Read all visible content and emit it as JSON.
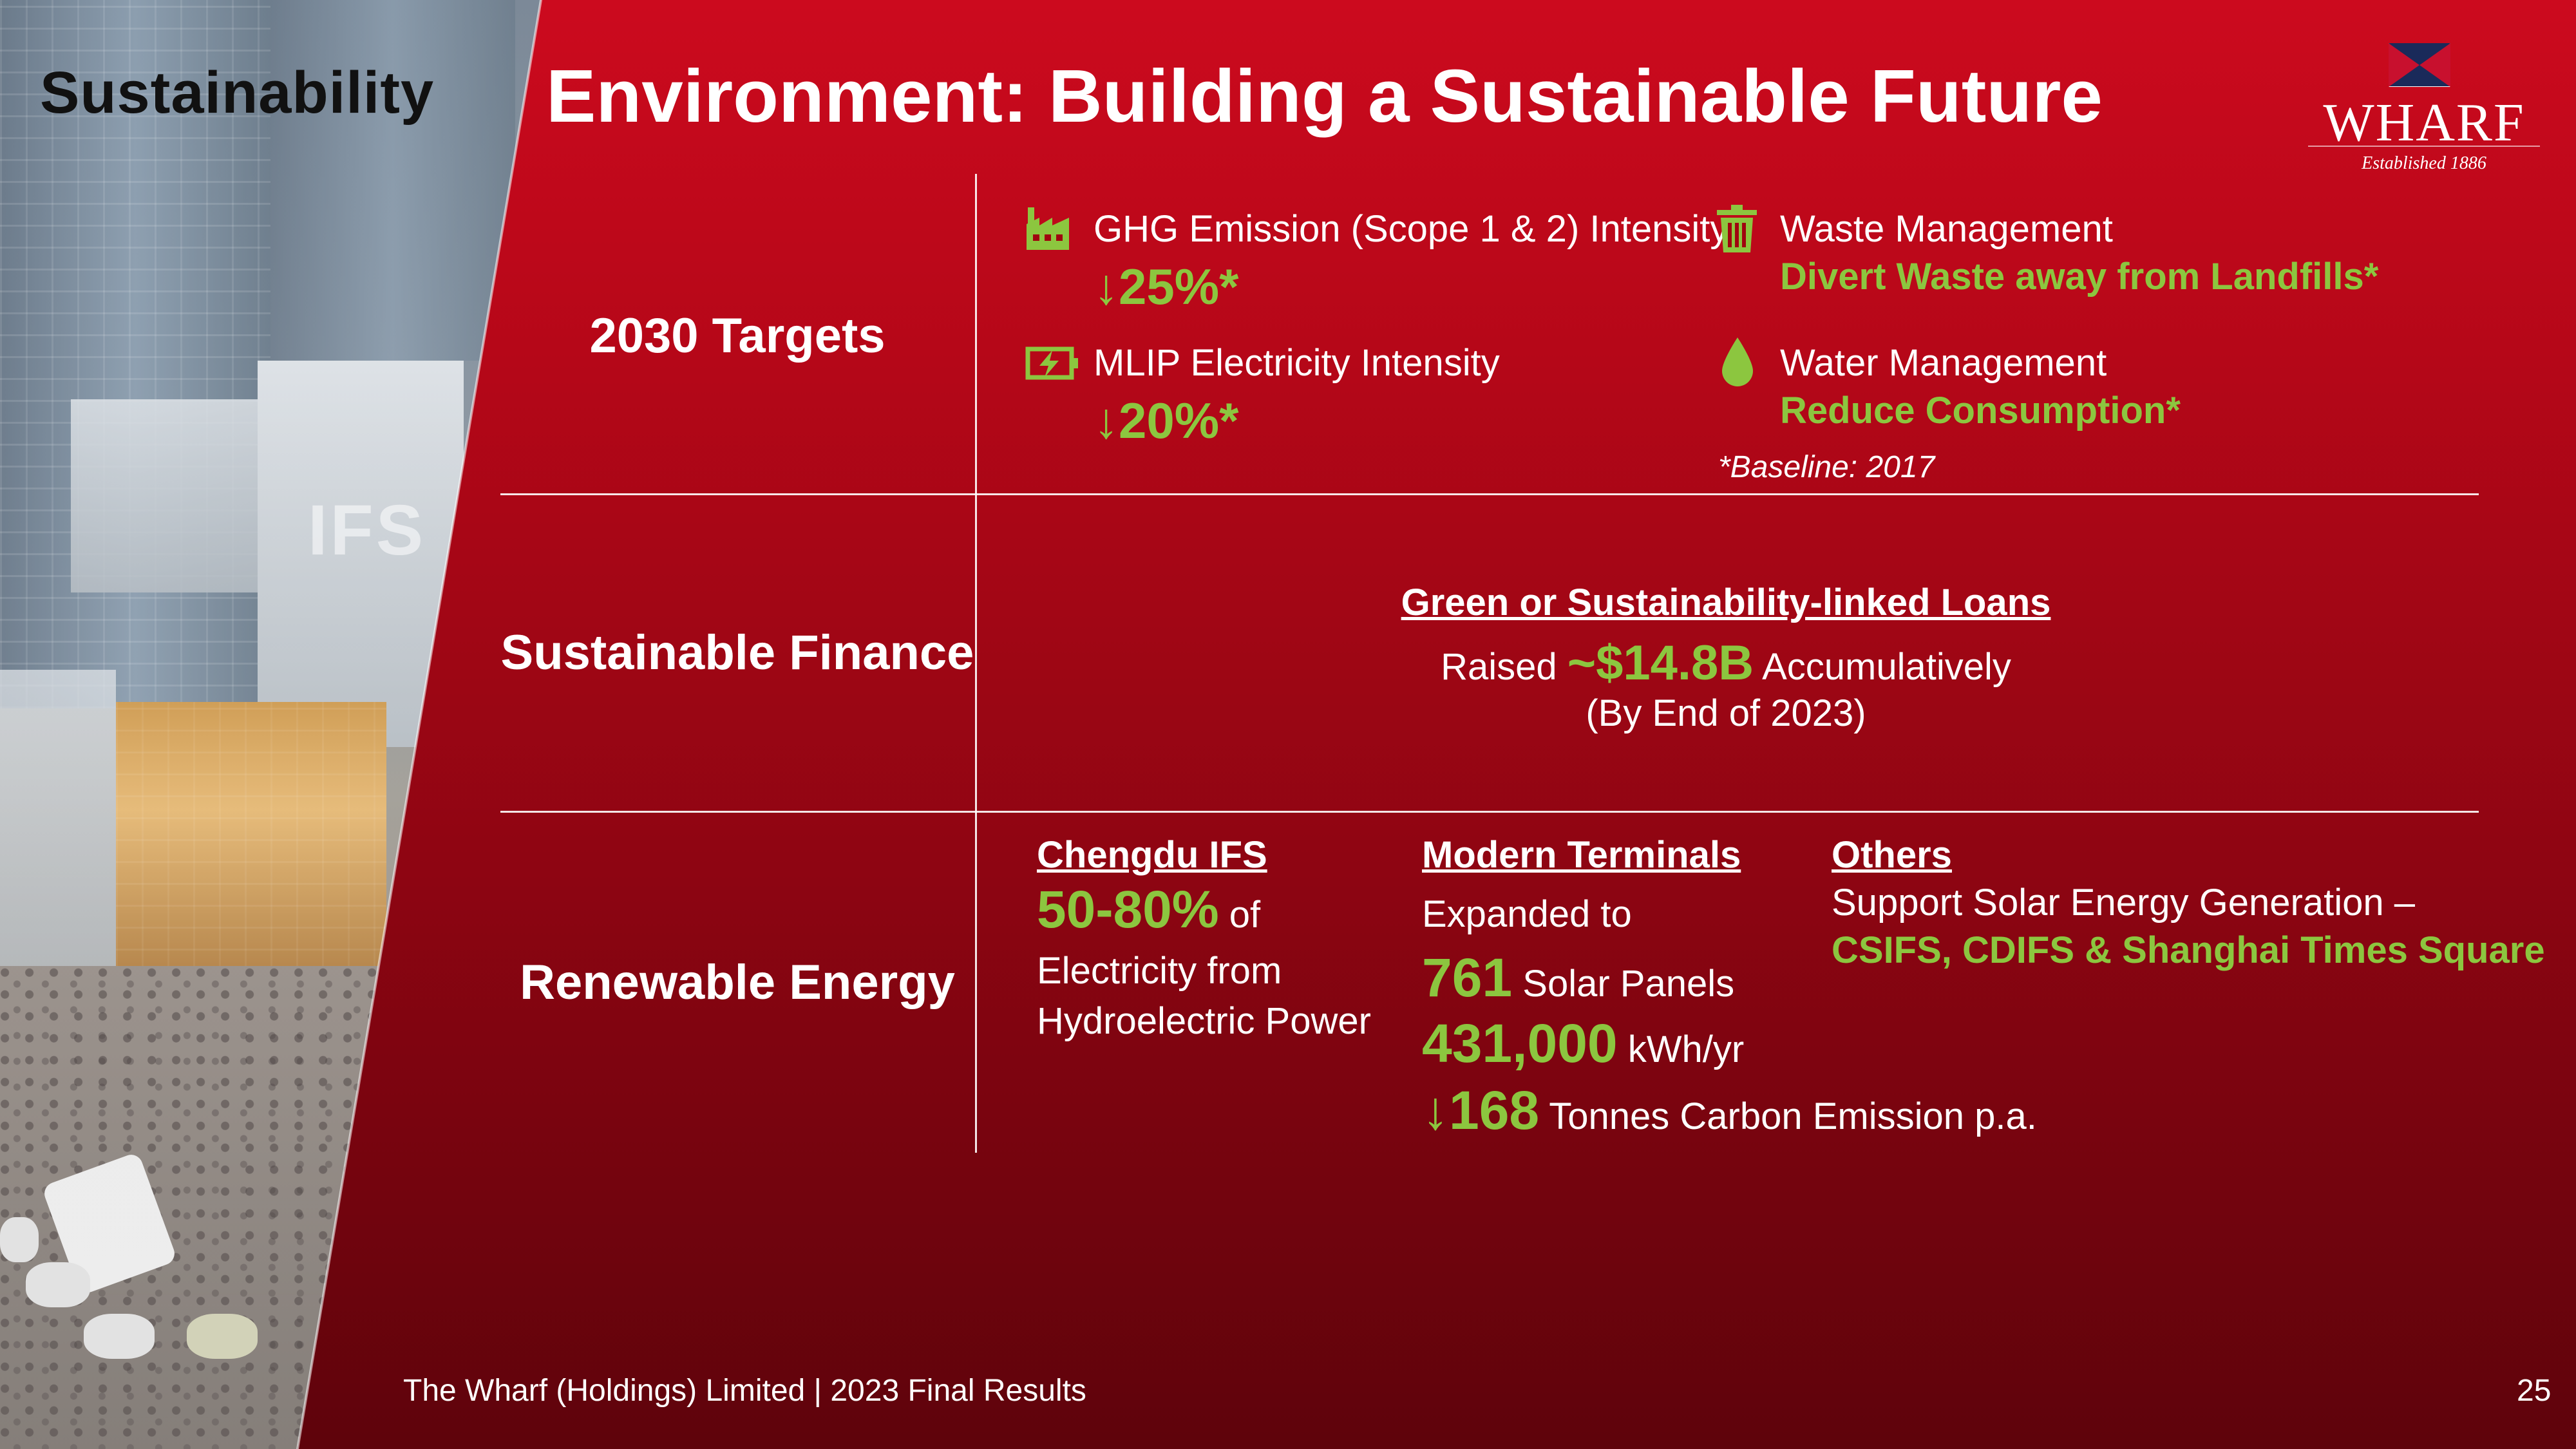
{
  "header": {
    "section": "Sustainability",
    "title": "Environment: Building a Sustainable Future"
  },
  "logo": {
    "name": "WHARF",
    "established": "Established 1886"
  },
  "targets": {
    "label": "2030 Targets",
    "ghg": {
      "icon": "factory-icon",
      "label": "GHG Emission (Scope 1 & 2) Intensity",
      "value": "↓25%*"
    },
    "mlip": {
      "icon": "battery-charging-icon",
      "label": "MLIP Electricity Intensity",
      "value": "↓20%*"
    },
    "waste": {
      "icon": "trash-icon",
      "label": "Waste Management",
      "value": "Divert Waste away from Landfills*"
    },
    "water": {
      "icon": "water-drop-icon",
      "label": "Water Management",
      "value": "Reduce Consumption*"
    },
    "baseline": "*Baseline: 2017"
  },
  "finance": {
    "label": "Sustainable Finance",
    "heading": "Green or Sustainability-linked Loans",
    "raised_prefix": "Raised",
    "amount": "~$14.8B",
    "raised_suffix": "Accumulatively",
    "note": "(By End of 2023)"
  },
  "renewable": {
    "label": "Renewable Energy",
    "chengdu": {
      "heading": "Chengdu IFS",
      "value": "50-80%",
      "text1": "of",
      "text2": "Electricity from",
      "text3": "Hydroelectric Power"
    },
    "terminals": {
      "heading": "Modern Terminals",
      "intro": "Expanded to",
      "panels_value": "761",
      "panels_unit": "Solar Panels",
      "energy_value": "431,000",
      "energy_unit": "kWh/yr",
      "carbon_value": "↓168",
      "carbon_unit": "Tonnes Carbon Emission p.a."
    },
    "others": {
      "heading": "Others",
      "text": "Support Solar Energy Generation –",
      "sites": "CSIFS, CDIFS & Shanghai Times Square"
    }
  },
  "footer": {
    "text": "The Wharf (Holdings) Limited | 2023 Final Results",
    "page": "25"
  },
  "colors": {
    "accent_green": "#8cc63f",
    "red_top": "#cc0a1e",
    "red_bottom": "#5e030b"
  }
}
